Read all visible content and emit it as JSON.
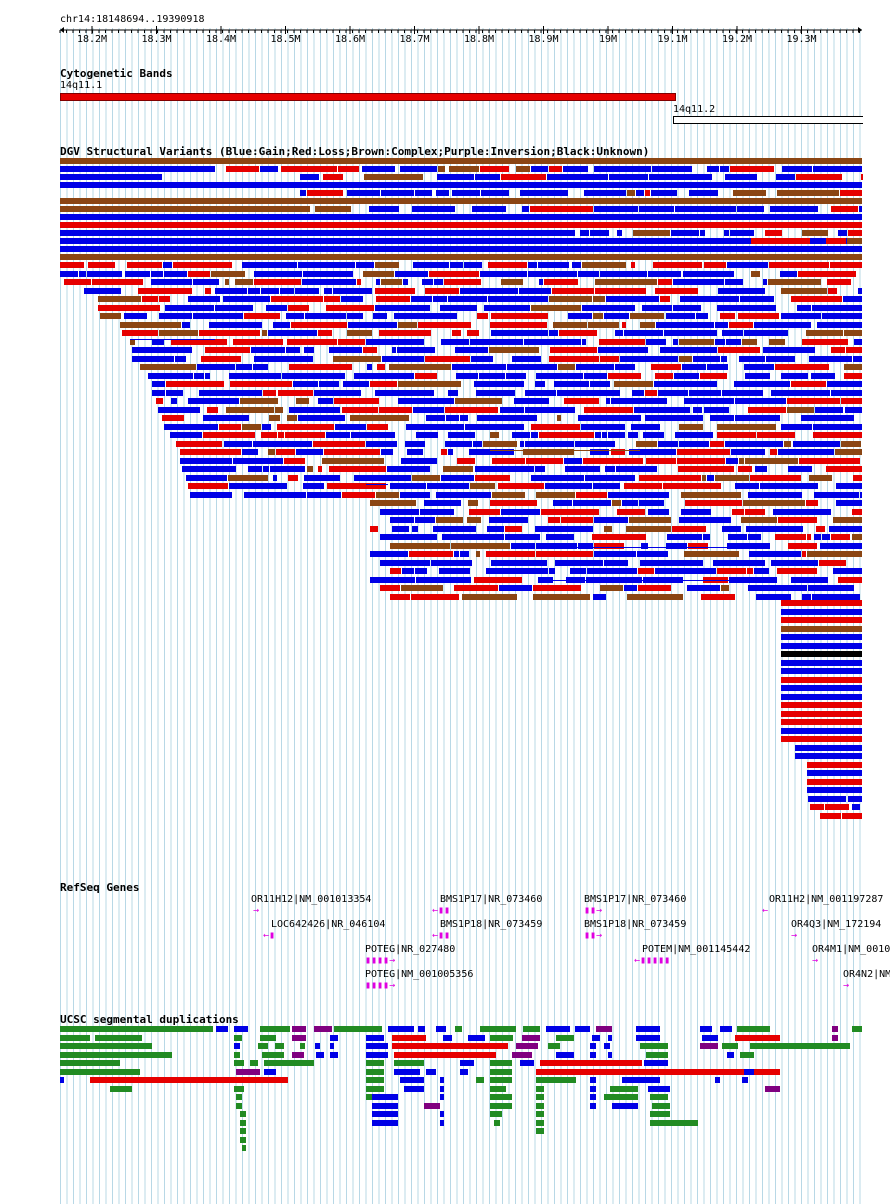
{
  "location": "chr14:18148694..19390918",
  "ruler": {
    "ticks": [
      "18.2M",
      "18.3M",
      "18.4M",
      "18.5M",
      "18.6M",
      "18.7M",
      "18.8M",
      "18.9M",
      "19M",
      "19.1M",
      "19.2M",
      "19.3M"
    ]
  },
  "tracks": {
    "cyto": {
      "title": "Cytogenetic Bands",
      "band1": "14q11.1",
      "band2": "14q11.2"
    },
    "dgv": {
      "title": "DGV Structural Variants (Blue:Gain;Red:Loss;Brown:Complex;Purple:Inversion;Black:Unknown)"
    },
    "refseq": {
      "title": "RefSeq Genes",
      "genes": [
        {
          "label": "OR11H12|NM_001013354",
          "glyph": "→"
        },
        {
          "label": "LOC642426|NR_046104",
          "glyph": "←▮"
        },
        {
          "label": "POTEG|NR_027480",
          "glyph": "▮▮▮▮→"
        },
        {
          "label": "POTEG|NM_001005356",
          "glyph": "▮▮▮▮→"
        },
        {
          "label": "BMS1P17|NR_073460",
          "glyph": "←▮▮"
        },
        {
          "label": "BMS1P18|NR_073459",
          "glyph": "←▮▮"
        },
        {
          "label": "BMS1P17|NR_073460",
          "glyph": "▮▮→"
        },
        {
          "label": "BMS1P18|NR_073459",
          "glyph": "▮▮→"
        },
        {
          "label": "POTEM|NM_001145442",
          "glyph": "←▮▮▮▮▮"
        },
        {
          "label": "OR11H2|NM_001197287",
          "glyph": "←"
        },
        {
          "label": "OR4Q3|NM_172194",
          "glyph": "→"
        },
        {
          "label": "OR4M1|NM_0010",
          "glyph": "→"
        },
        {
          "label": "OR4N2|NM",
          "glyph": "→"
        }
      ]
    },
    "segdup": {
      "title": "UCSC segmental duplications"
    }
  },
  "colors": {
    "gain": "#0000e6",
    "loss": "#e60000",
    "complex": "#8b4513",
    "unknown": "#000000",
    "segdup_green": "#228b22",
    "segdup_purple": "#800080",
    "gene": "#e000e0",
    "grid": "#b8d8e6"
  }
}
